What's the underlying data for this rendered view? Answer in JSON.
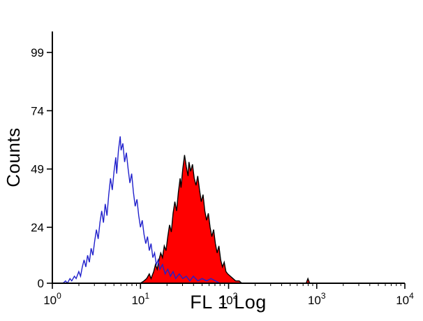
{
  "page": {
    "background": "#ffffff"
  },
  "chart_data": {
    "type": "area",
    "chart_kind": "flow-cytometry-histogram-overlay",
    "title": "",
    "xlabel": "FL 1 Log",
    "ylabel": "Counts",
    "x_scale": "log10",
    "xlim_log10": [
      0,
      4
    ],
    "x_major_ticks_exponents": [
      0,
      1,
      2,
      3,
      4
    ],
    "x_tick_labels": [
      "10^0",
      "10^1",
      "10^2",
      "10^3",
      "10^4"
    ],
    "ylim": [
      0,
      108
    ],
    "y_ticks": [
      0,
      24,
      49,
      74,
      99
    ],
    "grid": false,
    "legend": "none",
    "colors": {
      "axis": "#000000",
      "control_outline": "#2020cc",
      "sample_fill": "#ff0000",
      "sample_outline": "#000000"
    },
    "series": [
      {
        "name": "stained sample (red filled histogram)",
        "outline": "#000000",
        "fill": "#ff0000",
        "points_log10x_count": [
          [
            1.0,
            0
          ],
          [
            1.04,
            1
          ],
          [
            1.07,
            2
          ],
          [
            1.1,
            4
          ],
          [
            1.12,
            2
          ],
          [
            1.15,
            5
          ],
          [
            1.17,
            8
          ],
          [
            1.19,
            6
          ],
          [
            1.21,
            10
          ],
          [
            1.23,
            13
          ],
          [
            1.25,
            11
          ],
          [
            1.27,
            16
          ],
          [
            1.29,
            14
          ],
          [
            1.31,
            20
          ],
          [
            1.33,
            25
          ],
          [
            1.35,
            22
          ],
          [
            1.37,
            30
          ],
          [
            1.39,
            35
          ],
          [
            1.41,
            31
          ],
          [
            1.43,
            39
          ],
          [
            1.45,
            45
          ],
          [
            1.46,
            41
          ],
          [
            1.48,
            49
          ],
          [
            1.5,
            55
          ],
          [
            1.52,
            50
          ],
          [
            1.54,
            46
          ],
          [
            1.55,
            52
          ],
          [
            1.57,
            48
          ],
          [
            1.59,
            51
          ],
          [
            1.61,
            45
          ],
          [
            1.63,
            42
          ],
          [
            1.65,
            46
          ],
          [
            1.67,
            40
          ],
          [
            1.69,
            35
          ],
          [
            1.71,
            38
          ],
          [
            1.73,
            31
          ],
          [
            1.75,
            27
          ],
          [
            1.77,
            30
          ],
          [
            1.79,
            24
          ],
          [
            1.81,
            20
          ],
          [
            1.83,
            23
          ],
          [
            1.85,
            17
          ],
          [
            1.87,
            13
          ],
          [
            1.89,
            16
          ],
          [
            1.91,
            10
          ],
          [
            1.93,
            7
          ],
          [
            1.95,
            9
          ],
          [
            1.97,
            5
          ],
          [
            1.99,
            4
          ],
          [
            2.02,
            3
          ],
          [
            2.05,
            2
          ],
          [
            2.08,
            1
          ],
          [
            2.12,
            1
          ],
          [
            2.15,
            0
          ],
          [
            2.88,
            0
          ],
          [
            2.9,
            2
          ],
          [
            2.92,
            0
          ]
        ]
      },
      {
        "name": "negative control (open blue histogram)",
        "outline": "#2020cc",
        "fill": "none",
        "points_log10x_count": [
          [
            0.12,
            0
          ],
          [
            0.15,
            1
          ],
          [
            0.17,
            0
          ],
          [
            0.2,
            2
          ],
          [
            0.22,
            1
          ],
          [
            0.25,
            3
          ],
          [
            0.27,
            2
          ],
          [
            0.3,
            5
          ],
          [
            0.32,
            3
          ],
          [
            0.34,
            7
          ],
          [
            0.36,
            10
          ],
          [
            0.38,
            7
          ],
          [
            0.4,
            12
          ],
          [
            0.42,
            9
          ],
          [
            0.44,
            15
          ],
          [
            0.46,
            12
          ],
          [
            0.48,
            18
          ],
          [
            0.5,
            23
          ],
          [
            0.52,
            19
          ],
          [
            0.54,
            26
          ],
          [
            0.56,
            31
          ],
          [
            0.58,
            26
          ],
          [
            0.6,
            34
          ],
          [
            0.62,
            29
          ],
          [
            0.64,
            38
          ],
          [
            0.66,
            45
          ],
          [
            0.68,
            40
          ],
          [
            0.7,
            48
          ],
          [
            0.72,
            54
          ],
          [
            0.73,
            47
          ],
          [
            0.75,
            57
          ],
          [
            0.77,
            63
          ],
          [
            0.78,
            57
          ],
          [
            0.8,
            60
          ],
          [
            0.82,
            52
          ],
          [
            0.84,
            56
          ],
          [
            0.86,
            49
          ],
          [
            0.88,
            43
          ],
          [
            0.9,
            47
          ],
          [
            0.92,
            39
          ],
          [
            0.94,
            33
          ],
          [
            0.96,
            36
          ],
          [
            0.98,
            29
          ],
          [
            1.0,
            24
          ],
          [
            1.02,
            27
          ],
          [
            1.04,
            21
          ],
          [
            1.06,
            17
          ],
          [
            1.08,
            20
          ],
          [
            1.1,
            14
          ],
          [
            1.12,
            17
          ],
          [
            1.14,
            11
          ],
          [
            1.16,
            13
          ],
          [
            1.18,
            8
          ],
          [
            1.2,
            10
          ],
          [
            1.22,
            6
          ],
          [
            1.25,
            8
          ],
          [
            1.28,
            4
          ],
          [
            1.31,
            6
          ],
          [
            1.34,
            3
          ],
          [
            1.37,
            5
          ],
          [
            1.4,
            2
          ],
          [
            1.44,
            4
          ],
          [
            1.48,
            2
          ],
          [
            1.52,
            3
          ],
          [
            1.56,
            1
          ],
          [
            1.6,
            3
          ],
          [
            1.65,
            1
          ],
          [
            1.7,
            2
          ],
          [
            1.75,
            1
          ],
          [
            1.8,
            2
          ],
          [
            1.85,
            1
          ],
          [
            1.9,
            0
          ]
        ]
      }
    ]
  }
}
